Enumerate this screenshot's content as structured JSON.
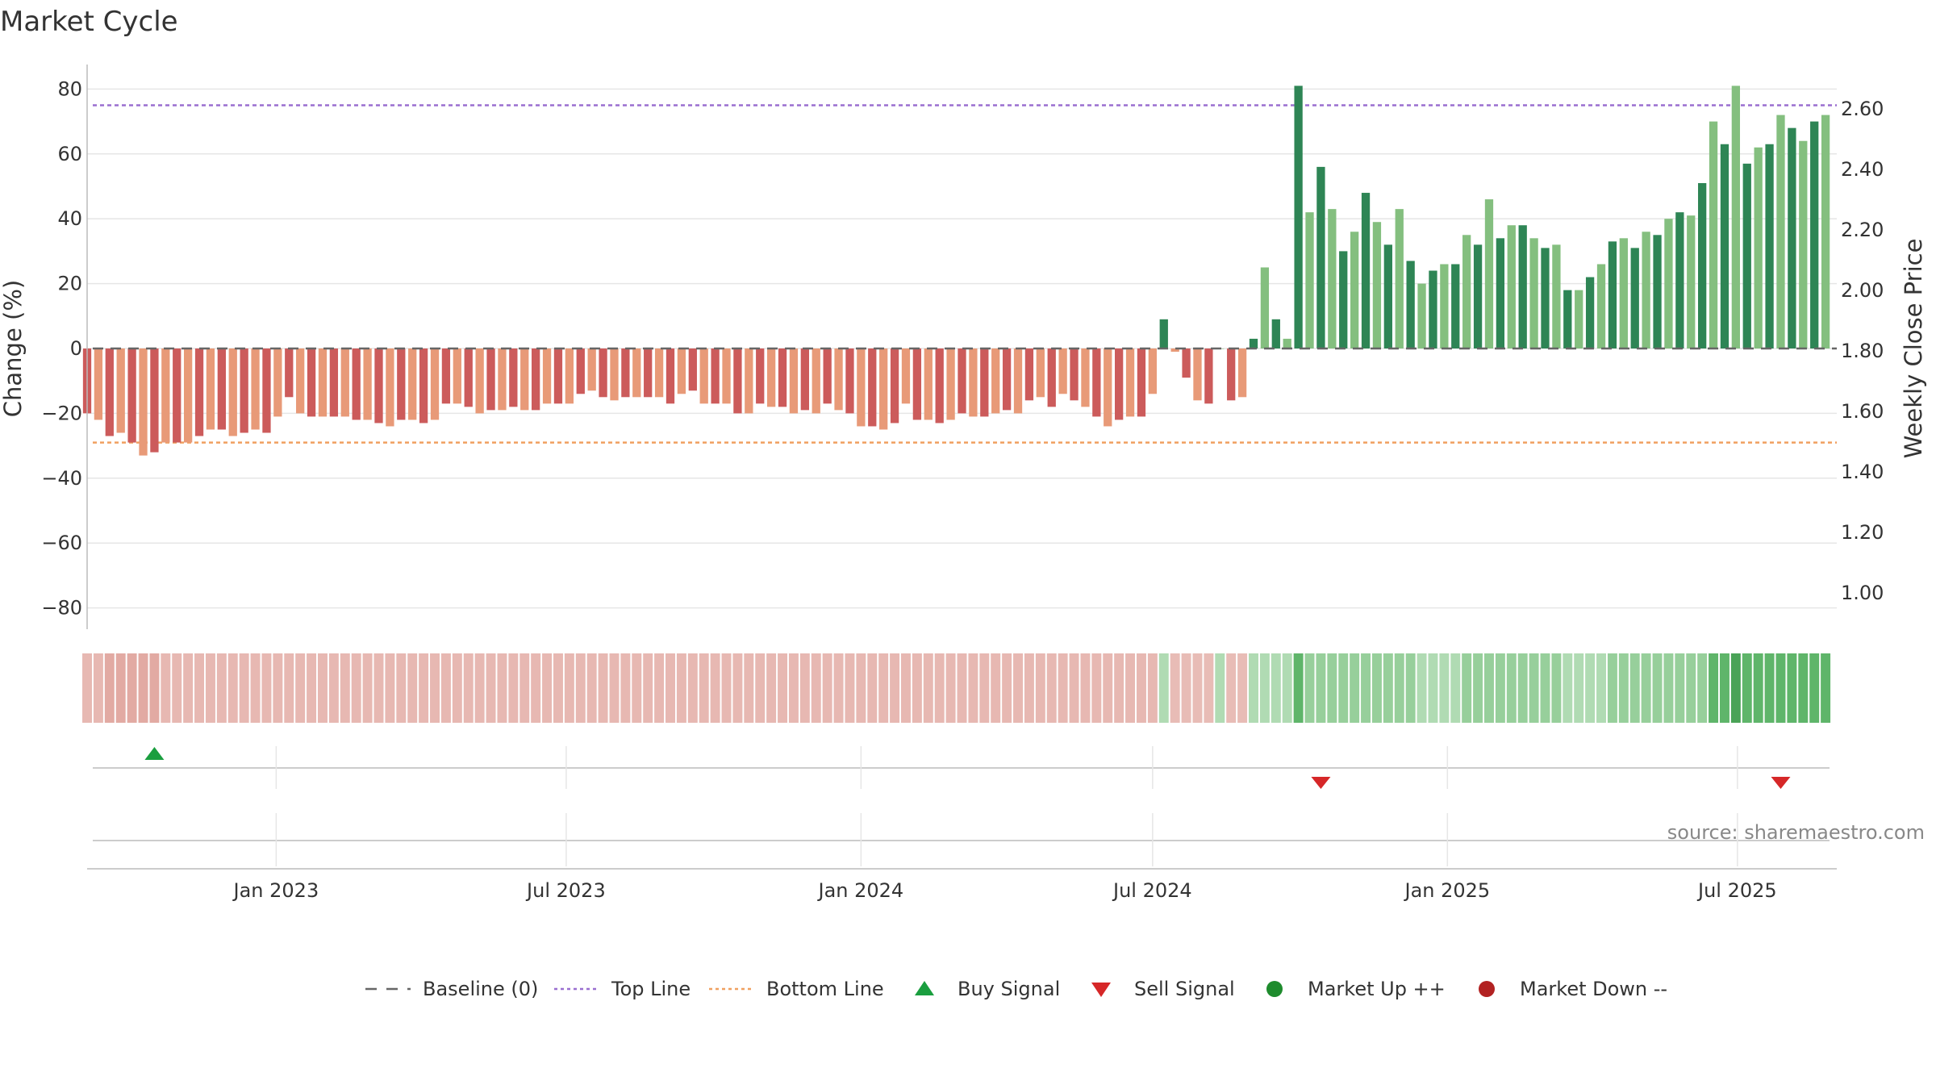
{
  "chart_data": {
    "type": "bar",
    "title": "Market Cycle",
    "source": "source: sharemaestro.com",
    "left_axis": {
      "label": "Change (%)",
      "range": [
        -88,
        88
      ],
      "ticks": [
        80,
        60,
        40,
        20,
        0,
        -20,
        -40,
        -60,
        -80
      ],
      "tick_labels": [
        "80",
        "60",
        "40",
        "20",
        "0",
        "−20",
        "−40",
        "−60",
        "−80"
      ]
    },
    "right_axis": {
      "label": "Weekly Close Price",
      "ticks": [
        2.6,
        2.4,
        2.2,
        2.0,
        1.8,
        1.6,
        1.4,
        1.2,
        1.0
      ],
      "tick_labels": [
        "2.60",
        "2.40",
        "2.20",
        "2.00",
        "1.80",
        "1.60",
        "1.40",
        "1.20",
        "1.00"
      ]
    },
    "x_axis": {
      "range": [
        "2022-09-05",
        "2025-09-01"
      ],
      "ticks": [
        "2023-01-01",
        "2023-07-01",
        "2024-01-01",
        "2024-07-01",
        "2025-01-01",
        "2025-07-01"
      ],
      "tick_labels": [
        "Jan 2023",
        "Jul 2023",
        "Jan 2024",
        "Jul 2024",
        "Jan 2025",
        "Jul 2025"
      ]
    },
    "first_week": "2022-09-05",
    "top_line": 75,
    "bottom_line": -29,
    "grid": true,
    "legend_position": "bottom",
    "colors": {
      "up_dark": "#2e8555",
      "up_light": "#84bf7f",
      "down_dark": "#cc5b5b",
      "down_light": "#e89a78",
      "top_line": "#9a6fd0",
      "bottom_line": "#f0a060",
      "baseline": "#666666",
      "buy": "#1a9e3f",
      "sell": "#d62728",
      "market_up": "#1e8b2d",
      "market_down": "#b22222"
    },
    "weekly_change": [
      -20,
      -22,
      -27,
      -26,
      -29,
      -33,
      -32,
      -29,
      -29,
      -29,
      -27,
      -25,
      -25,
      -27,
      -26,
      -25,
      -26,
      -21,
      -15,
      -20,
      -21,
      -21,
      -21,
      -21,
      -22,
      -22,
      -23,
      -24,
      -22,
      -22,
      -23,
      -22,
      -17,
      -17,
      -18,
      -20,
      -19,
      -19,
      -18,
      -19,
      -19,
      -17,
      -17,
      -17,
      -14,
      -13,
      -15,
      -16,
      -15,
      -15,
      -15,
      -15,
      -17,
      -14,
      -13,
      -17,
      -17,
      -17,
      -20,
      -20,
      -17,
      -18,
      -18,
      -20,
      -19,
      -20,
      -17,
      -19,
      -20,
      -24,
      -24,
      -25,
      -23,
      -17,
      -22,
      -22,
      -23,
      -22,
      -20,
      -21,
      -21,
      -20,
      -19,
      -20,
      -16,
      -15,
      -18,
      -14,
      -16,
      -18,
      -21,
      -24,
      -22,
      -21,
      -21,
      -14,
      9,
      -1,
      -9,
      -16,
      -17,
      0,
      -16,
      -15,
      3,
      25,
      9,
      3,
      81,
      42,
      56,
      43,
      30,
      36,
      48,
      39,
      32,
      43,
      27,
      20,
      24,
      26,
      26,
      35,
      32,
      46,
      34,
      38,
      38,
      34,
      31,
      32,
      18,
      18,
      22,
      26,
      33,
      34,
      31,
      36,
      35,
      40,
      42,
      41,
      51,
      70,
      63,
      81,
      57,
      62,
      63,
      72,
      68,
      64,
      70,
      72
    ],
    "shade_tones": [
      3,
      3,
      4,
      4,
      4,
      4,
      4,
      3,
      3,
      3,
      3,
      3,
      3,
      3,
      3,
      3,
      3,
      3,
      3,
      3,
      3,
      3,
      3,
      3,
      3,
      3,
      3,
      3,
      3,
      3,
      3,
      3,
      3,
      3,
      3,
      3,
      3,
      3,
      3,
      3,
      3,
      3,
      3,
      3,
      3,
      3,
      3,
      3,
      3,
      3,
      3,
      3,
      3,
      3,
      3,
      3,
      3,
      3,
      3,
      3,
      3,
      3,
      3,
      3,
      3,
      3,
      3,
      3,
      3,
      3,
      3,
      3,
      3,
      3,
      3,
      3,
      3,
      3,
      3,
      3,
      3,
      3,
      3,
      3,
      3,
      3,
      3,
      3,
      3,
      3,
      3,
      3,
      3,
      3,
      3,
      3,
      1,
      2,
      2,
      2,
      2,
      1,
      2,
      2,
      1,
      1,
      1,
      1,
      3,
      2,
      2,
      2,
      2,
      2,
      2,
      2,
      2,
      2,
      2,
      1,
      1,
      1,
      1,
      2,
      2,
      2,
      2,
      2,
      2,
      2,
      2,
      2,
      1,
      1,
      1,
      1,
      2,
      2,
      2,
      2,
      2,
      2,
      2,
      2,
      2,
      3,
      3,
      4,
      3,
      3,
      3,
      3,
      3,
      3,
      3,
      3
    ],
    "shade_colors": {
      "down": [
        "#f1dcda",
        "#eac1bc",
        "#e8bcb6",
        "#e7b8b2",
        "#e2aaa3"
      ],
      "up": [
        "#cbe8cd",
        "#b0dbb3",
        "#97cf9b",
        "#5fb56a",
        "#4aa357"
      ]
    },
    "signals": [
      {
        "type": "buy",
        "date": "2022-10-17"
      },
      {
        "type": "sell",
        "date": "2024-10-14"
      },
      {
        "type": "sell",
        "date": "2025-07-28"
      }
    ],
    "legend": [
      {
        "key": "baseline",
        "label": "Baseline (0)",
        "marker": "dash",
        "color": "#666666"
      },
      {
        "key": "top",
        "label": "Top Line",
        "marker": "dot-line",
        "color": "#9a6fd0"
      },
      {
        "key": "bottom",
        "label": "Bottom Line",
        "marker": "dot-line",
        "color": "#f0a060"
      },
      {
        "key": "buy",
        "label": "Buy Signal",
        "marker": "triangle-up",
        "color": "#1a9e3f"
      },
      {
        "key": "sell",
        "label": "Sell Signal",
        "marker": "triangle-down",
        "color": "#d62728"
      },
      {
        "key": "up",
        "label": "Market Up ++",
        "marker": "circle",
        "color": "#1e8b2d"
      },
      {
        "key": "down",
        "label": "Market Down --",
        "marker": "circle",
        "color": "#b22222"
      }
    ]
  }
}
